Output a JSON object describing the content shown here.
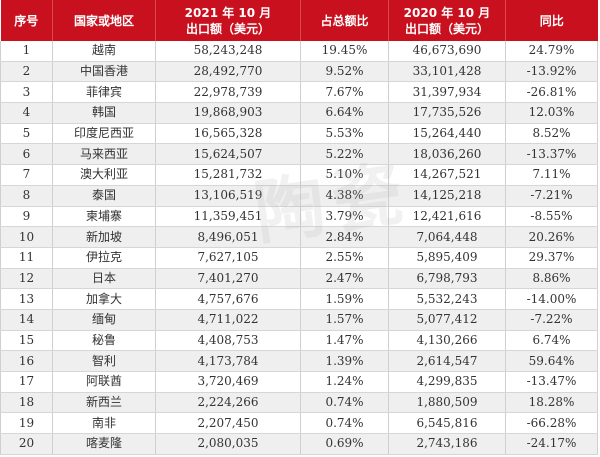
{
  "table": {
    "headers": [
      {
        "line1": "序号",
        "line2": ""
      },
      {
        "line1": "国家或地区",
        "line2": ""
      },
      {
        "line1": "2021 年 10 月",
        "line2": "出口额（美元）"
      },
      {
        "line1": "占总额比",
        "line2": ""
      },
      {
        "line1": "2020 年 10 月",
        "line2": "出口额（美元）"
      },
      {
        "line1": "同比",
        "line2": ""
      }
    ],
    "rows": [
      {
        "rank": "1",
        "country": "越南",
        "export_2021": "58,243,248",
        "share": "19.45%",
        "export_2020": "46,673,690",
        "yoy": "24.79%"
      },
      {
        "rank": "2",
        "country": "中国香港",
        "export_2021": "28,492,770",
        "share": "9.52%",
        "export_2020": "33,101,428",
        "yoy": "-13.92%"
      },
      {
        "rank": "3",
        "country": "菲律宾",
        "export_2021": "22,978,739",
        "share": "7.67%",
        "export_2020": "31,397,934",
        "yoy": "-26.81%"
      },
      {
        "rank": "4",
        "country": "韩国",
        "export_2021": "19,868,903",
        "share": "6.64%",
        "export_2020": "17,735,526",
        "yoy": "12.03%"
      },
      {
        "rank": "5",
        "country": "印度尼西亚",
        "export_2021": "16,565,328",
        "share": "5.53%",
        "export_2020": "15,264,440",
        "yoy": "8.52%"
      },
      {
        "rank": "6",
        "country": "马来西亚",
        "export_2021": "15,624,507",
        "share": "5.22%",
        "export_2020": "18,036,260",
        "yoy": "-13.37%"
      },
      {
        "rank": "7",
        "country": "澳大利亚",
        "export_2021": "15,281,732",
        "share": "5.10%",
        "export_2020": "14,267,521",
        "yoy": "7.11%"
      },
      {
        "rank": "8",
        "country": "泰国",
        "export_2021": "13,106,519",
        "share": "4.38%",
        "export_2020": "14,125,218",
        "yoy": "-7.21%"
      },
      {
        "rank": "9",
        "country": "柬埔寨",
        "export_2021": "11,359,451",
        "share": "3.79%",
        "export_2020": "12,421,616",
        "yoy": "-8.55%"
      },
      {
        "rank": "10",
        "country": "新加坡",
        "export_2021": "8,496,051",
        "share": "2.84%",
        "export_2020": "7,064,448",
        "yoy": "20.26%"
      },
      {
        "rank": "11",
        "country": "伊拉克",
        "export_2021": "7,627,105",
        "share": "2.55%",
        "export_2020": "5,895,409",
        "yoy": "29.37%"
      },
      {
        "rank": "12",
        "country": "日本",
        "export_2021": "7,401,270",
        "share": "2.47%",
        "export_2020": "6,798,793",
        "yoy": "8.86%"
      },
      {
        "rank": "13",
        "country": "加拿大",
        "export_2021": "4,757,676",
        "share": "1.59%",
        "export_2020": "5,532,243",
        "yoy": "-14.00%"
      },
      {
        "rank": "14",
        "country": "缅甸",
        "export_2021": "4,711,022",
        "share": "1.57%",
        "export_2020": "5,077,412",
        "yoy": "-7.22%"
      },
      {
        "rank": "15",
        "country": "秘鲁",
        "export_2021": "4,408,753",
        "share": "1.47%",
        "export_2020": "4,130,266",
        "yoy": "6.74%"
      },
      {
        "rank": "16",
        "country": "智利",
        "export_2021": "4,173,784",
        "share": "1.39%",
        "export_2020": "2,614,547",
        "yoy": "59.64%"
      },
      {
        "rank": "17",
        "country": "阿联酋",
        "export_2021": "3,720,469",
        "share": "1.24%",
        "export_2020": "4,299,835",
        "yoy": "-13.47%"
      },
      {
        "rank": "18",
        "country": "新西兰",
        "export_2021": "2,224,266",
        "share": "0.74%",
        "export_2020": "1,880,509",
        "yoy": "18.28%"
      },
      {
        "rank": "19",
        "country": "南非",
        "export_2021": "2,207,450",
        "share": "0.74%",
        "export_2020": "6,545,816",
        "yoy": "-66.28%"
      },
      {
        "rank": "20",
        "country": "喀麦隆",
        "export_2021": "2,080,035",
        "share": "0.69%",
        "export_2020": "2,743,186",
        "yoy": "-24.17%"
      }
    ]
  },
  "colors": {
    "header_bg": "#c8101e",
    "header_text": "#ffffff",
    "stripe_bg": "#efefef",
    "body_text": "#333333"
  },
  "watermark": "陶瓷"
}
